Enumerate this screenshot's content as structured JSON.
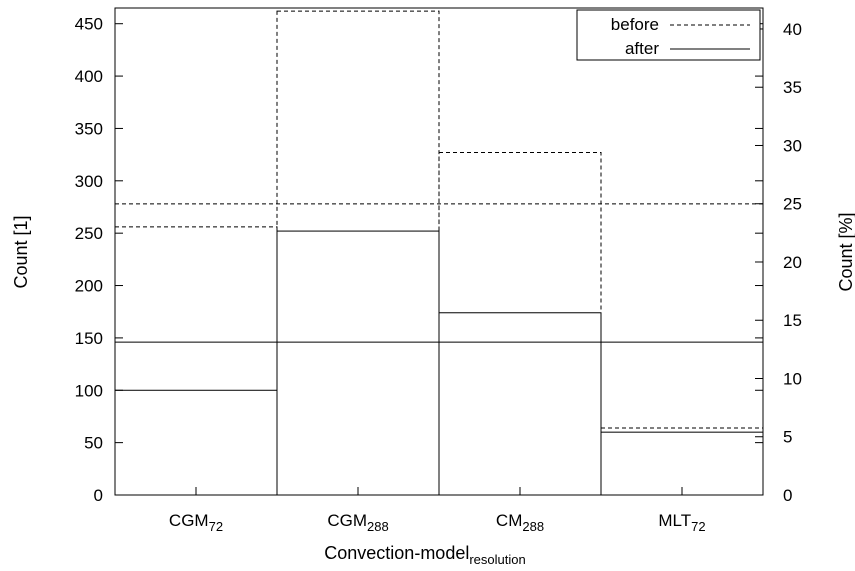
{
  "chart_data": {
    "type": "bar",
    "xlabel_main": "Convection-model",
    "xlabel_sub": "resolution",
    "ylabel_left": "Count [1]",
    "ylabel_right": "Count [%]",
    "categories": [
      {
        "main": "CGM",
        "sub": "72"
      },
      {
        "main": "CGM",
        "sub": "288"
      },
      {
        "main": "CM",
        "sub": "288"
      },
      {
        "main": "MLT",
        "sub": "72"
      }
    ],
    "ylim_left": [
      0,
      465
    ],
    "ylim_right": [
      0,
      41.8
    ],
    "yticks_left": [
      "0",
      "50",
      "100",
      "150",
      "200",
      "250",
      "300",
      "350",
      "400",
      "450"
    ],
    "yticks_right": [
      "0",
      "5",
      "10",
      "15",
      "20",
      "25",
      "30",
      "35",
      "40"
    ],
    "series": [
      {
        "name": "before",
        "style": "dashed",
        "values": [
          256,
          462,
          327,
          64
        ],
        "mean": 278
      },
      {
        "name": "after",
        "style": "solid",
        "values": [
          100,
          252,
          174,
          60
        ],
        "mean": 146
      }
    ],
    "legend": {
      "position": "top-right"
    }
  }
}
